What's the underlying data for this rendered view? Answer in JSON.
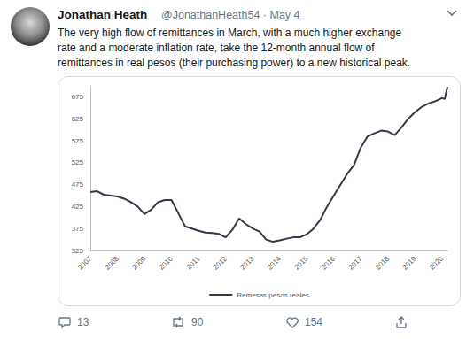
{
  "tweet": {
    "author": "Jonathan Heath",
    "handle_line": "@JonathanHeath54 · May 4",
    "text_lines": [
      "The very high flow of remittances in March, with a much higher exchange",
      "rate and a moderate inflation rate, take the 12-month annual flow of",
      "remittances in real pesos (their purchasing power) to a new historical peak."
    ],
    "replies": 13,
    "retweets": 90,
    "likes": 154
  },
  "chart_data": {
    "type": "line",
    "x": [
      2007,
      2007.25,
      2007.5,
      2007.75,
      2008,
      2008.25,
      2008.5,
      2008.75,
      2009,
      2009.25,
      2009.5,
      2009.75,
      2010,
      2010.25,
      2010.5,
      2010.75,
      2011,
      2011.25,
      2011.5,
      2011.75,
      2012,
      2012.25,
      2012.5,
      2012.75,
      2013,
      2013.25,
      2013.5,
      2013.75,
      2014,
      2014.25,
      2014.5,
      2014.75,
      2015,
      2015.25,
      2015.5,
      2015.75,
      2016,
      2016.25,
      2016.5,
      2016.75,
      2017,
      2017.25,
      2017.5,
      2017.75,
      2018,
      2018.25,
      2018.5,
      2018.75,
      2019,
      2019.25,
      2019.5,
      2019.75,
      2020,
      2020.1,
      2020.2
    ],
    "series": [
      {
        "name": "Remesas pesos reales",
        "color": "#3d3448",
        "values": [
          458,
          460,
          452,
          450,
          448,
          443,
          435,
          425,
          408,
          418,
          435,
          440,
          440,
          410,
          380,
          375,
          370,
          366,
          365,
          363,
          355,
          372,
          398,
          385,
          375,
          368,
          350,
          345,
          348,
          352,
          355,
          355,
          362,
          375,
          395,
          425,
          450,
          475,
          500,
          520,
          560,
          585,
          592,
          598,
          596,
          588,
          605,
          625,
          640,
          652,
          660,
          665,
          672,
          670,
          698
        ]
      }
    ],
    "xlim": [
      2007,
      2020.2
    ],
    "xticks": [
      2007,
      2008,
      2009,
      2010,
      2011,
      2012,
      2013,
      2014,
      2015,
      2016,
      2017,
      2018,
      2019,
      2020
    ],
    "ylim": [
      325,
      700
    ],
    "yticks": [
      325,
      375,
      425,
      475,
      525,
      575,
      625,
      675
    ],
    "grid": false,
    "legend": "bottom"
  }
}
